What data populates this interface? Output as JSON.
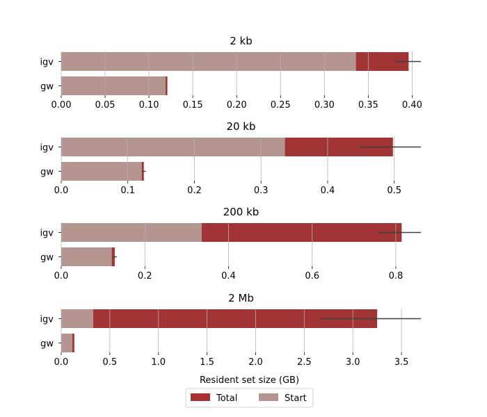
{
  "chart_data": {
    "type": "bar",
    "orientation": "horizontal",
    "stacked": true,
    "xlabel": "Resident set size (GB)",
    "legend": {
      "placement": "bottom-center",
      "entries": [
        {
          "name": "Total",
          "color": "#a83232"
        },
        {
          "name": "Start",
          "color": "#b69490"
        }
      ]
    },
    "colors": {
      "total": "#a13434",
      "start": "#b59590",
      "error": "#3f3f3f",
      "grid": "#b0b0b0"
    },
    "panels": [
      {
        "title": "2 kb",
        "xlim": [
          0,
          0.41
        ],
        "xticks": [
          0.0,
          0.05,
          0.1,
          0.15,
          0.2,
          0.25,
          0.3,
          0.35,
          0.4
        ],
        "xtick_labels": [
          "0.00",
          "0.05",
          "0.10",
          "0.15",
          "0.20",
          "0.25",
          "0.30",
          "0.35",
          "0.40"
        ],
        "categories": [
          "igv",
          "gw"
        ],
        "start": [
          0.336,
          0.119
        ],
        "total": [
          0.396,
          0.121
        ],
        "error": [
          0.016,
          0.0
        ]
      },
      {
        "title": "20 kb",
        "xlim": [
          0,
          0.54
        ],
        "xticks": [
          0.0,
          0.1,
          0.2,
          0.3,
          0.4,
          0.5
        ],
        "xtick_labels": [
          "0.0",
          "0.1",
          "0.2",
          "0.3",
          "0.4",
          "0.5"
        ],
        "categories": [
          "igv",
          "gw"
        ],
        "start": [
          0.336,
          0.121
        ],
        "total": [
          0.498,
          0.124
        ],
        "error": [
          0.05,
          0.003
        ]
      },
      {
        "title": "200 kb",
        "xlim": [
          0,
          0.86
        ],
        "xticks": [
          0.0,
          0.2,
          0.4,
          0.6,
          0.8
        ],
        "xtick_labels": [
          "0.0",
          "0.2",
          "0.4",
          "0.6",
          "0.8"
        ],
        "categories": [
          "igv",
          "gw"
        ],
        "start": [
          0.336,
          0.121
        ],
        "total": [
          0.814,
          0.128
        ],
        "error": [
          0.055,
          0.005
        ]
      },
      {
        "title": "2 Mb",
        "xlim": [
          0,
          3.7
        ],
        "xticks": [
          0.0,
          0.5,
          1.0,
          1.5,
          2.0,
          2.5,
          3.0,
          3.5
        ],
        "xtick_labels": [
          "0.0",
          "0.5",
          "1.0",
          "1.5",
          "2.0",
          "2.5",
          "3.0",
          "3.5"
        ],
        "categories": [
          "igv",
          "gw"
        ],
        "start": [
          0.33,
          0.115
        ],
        "total": [
          3.25,
          0.135
        ],
        "error": [
          0.58,
          0.0
        ]
      }
    ]
  }
}
